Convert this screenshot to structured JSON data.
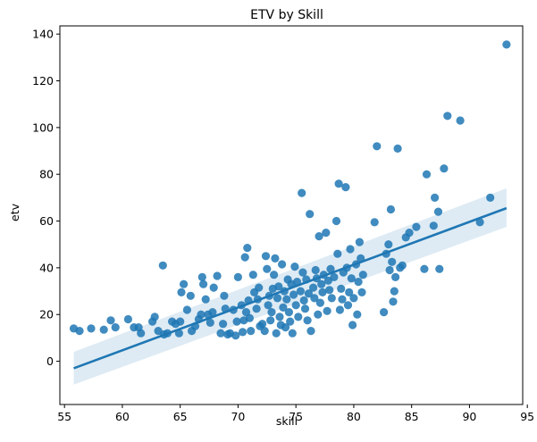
{
  "chart_data": {
    "type": "scatter",
    "title": "ETV by Skill",
    "xlabel": "skill",
    "ylabel": "etv",
    "xlim": [
      54.6,
      94.6
    ],
    "ylim": [
      -18.5,
      143.5
    ],
    "xticks": [
      55,
      60,
      65,
      70,
      75,
      80,
      85,
      90,
      95
    ],
    "yticks": [
      0,
      20,
      40,
      60,
      80,
      100,
      120,
      140
    ],
    "grid": false,
    "legend": "none",
    "colors": {
      "points": "#1f77b4",
      "line": "#1f77b4",
      "band": "#1f77b4"
    },
    "regression": {
      "x": [
        55.8,
        93.2
      ],
      "y": [
        -3.0,
        65.5
      ],
      "ci_lower": [
        -10.0,
        57.5
      ],
      "ci_upper": [
        4.0,
        74.0
      ]
    },
    "points": [
      [
        55.8,
        14
      ],
      [
        56.3,
        13
      ],
      [
        57.3,
        14
      ],
      [
        58.4,
        13.5
      ],
      [
        59.0,
        17.5
      ],
      [
        59.4,
        14.5
      ],
      [
        60.5,
        18
      ],
      [
        61.0,
        14.5
      ],
      [
        61.4,
        14.5
      ],
      [
        61.6,
        12
      ],
      [
        62.6,
        17
      ],
      [
        62.8,
        19
      ],
      [
        63.1,
        13
      ],
      [
        63.6,
        11.5
      ],
      [
        63.9,
        12
      ],
      [
        63.5,
        41
      ],
      [
        64.3,
        17
      ],
      [
        64.6,
        16
      ],
      [
        64.9,
        12
      ],
      [
        65.0,
        17
      ],
      [
        65.1,
        29.5
      ],
      [
        65.3,
        33
      ],
      [
        65.6,
        22
      ],
      [
        65.9,
        28
      ],
      [
        66.0,
        13
      ],
      [
        66.3,
        15
      ],
      [
        66.6,
        18
      ],
      [
        66.8,
        20
      ],
      [
        66.9,
        36
      ],
      [
        67.0,
        33
      ],
      [
        67.2,
        26.5
      ],
      [
        67.4,
        20
      ],
      [
        67.6,
        16.5
      ],
      [
        67.8,
        21
      ],
      [
        67.9,
        31.5
      ],
      [
        68.2,
        36.5
      ],
      [
        68.5,
        12
      ],
      [
        68.7,
        16
      ],
      [
        68.8,
        28
      ],
      [
        68.9,
        22.5
      ],
      [
        69.1,
        11.5
      ],
      [
        69.3,
        12
      ],
      [
        69.6,
        22
      ],
      [
        69.8,
        11
      ],
      [
        69.9,
        17
      ],
      [
        70.0,
        36
      ],
      [
        70.3,
        24
      ],
      [
        70.4,
        12.5
      ],
      [
        70.5,
        17.5
      ],
      [
        70.6,
        44.5
      ],
      [
        70.7,
        21
      ],
      [
        70.8,
        48.5
      ],
      [
        70.9,
        26
      ],
      [
        71.0,
        18.5
      ],
      [
        71.1,
        13
      ],
      [
        71.3,
        37
      ],
      [
        71.4,
        29.5
      ],
      [
        71.6,
        22.5
      ],
      [
        71.7,
        26.5
      ],
      [
        71.8,
        31.5
      ],
      [
        71.9,
        15
      ],
      [
        72.1,
        16
      ],
      [
        72.3,
        13
      ],
      [
        72.4,
        45
      ],
      [
        72.5,
        39.5
      ],
      [
        72.6,
        24
      ],
      [
        72.7,
        28
      ],
      [
        72.8,
        17.5
      ],
      [
        72.9,
        21
      ],
      [
        73.0,
        31
      ],
      [
        73.1,
        37
      ],
      [
        73.2,
        44
      ],
      [
        73.3,
        12
      ],
      [
        73.4,
        27
      ],
      [
        73.5,
        32
      ],
      [
        73.6,
        19
      ],
      [
        73.7,
        15.5
      ],
      [
        73.8,
        41.5
      ],
      [
        73.9,
        23
      ],
      [
        74.0,
        30
      ],
      [
        74.1,
        14.5
      ],
      [
        74.2,
        26.5
      ],
      [
        74.3,
        35
      ],
      [
        74.4,
        21
      ],
      [
        74.5,
        17
      ],
      [
        74.6,
        33
      ],
      [
        74.7,
        12
      ],
      [
        74.8,
        28.5
      ],
      [
        74.9,
        40.5
      ],
      [
        75.0,
        24
      ],
      [
        75.1,
        34
      ],
      [
        75.2,
        19
      ],
      [
        75.4,
        30
      ],
      [
        75.5,
        72
      ],
      [
        75.6,
        38
      ],
      [
        75.7,
        26
      ],
      [
        75.8,
        22.5
      ],
      [
        75.9,
        35
      ],
      [
        76.0,
        17.5
      ],
      [
        76.1,
        29
      ],
      [
        76.2,
        63
      ],
      [
        76.3,
        13
      ],
      [
        76.5,
        31.5
      ],
      [
        76.6,
        27
      ],
      [
        76.7,
        39
      ],
      [
        76.8,
        35.5
      ],
      [
        76.9,
        20
      ],
      [
        77.0,
        53.5
      ],
      [
        77.1,
        25
      ],
      [
        77.2,
        33
      ],
      [
        77.3,
        29.5
      ],
      [
        77.4,
        37
      ],
      [
        77.6,
        55
      ],
      [
        77.7,
        21.5
      ],
      [
        77.8,
        34.5
      ],
      [
        77.9,
        30.5
      ],
      [
        78.0,
        39.5
      ],
      [
        78.1,
        27
      ],
      [
        78.3,
        36
      ],
      [
        78.5,
        60
      ],
      [
        78.6,
        46
      ],
      [
        78.7,
        76
      ],
      [
        78.8,
        22
      ],
      [
        78.9,
        31
      ],
      [
        79.0,
        26.5
      ],
      [
        79.1,
        38
      ],
      [
        79.3,
        74.5
      ],
      [
        79.4,
        40
      ],
      [
        79.5,
        24
      ],
      [
        79.6,
        29.5
      ],
      [
        79.7,
        48
      ],
      [
        79.8,
        35.5
      ],
      [
        79.9,
        15.5
      ],
      [
        80.0,
        27
      ],
      [
        80.2,
        41.5
      ],
      [
        80.3,
        20
      ],
      [
        80.4,
        34
      ],
      [
        80.5,
        51
      ],
      [
        80.6,
        44
      ],
      [
        80.7,
        29.5
      ],
      [
        80.8,
        37
      ],
      [
        81.8,
        59.5
      ],
      [
        82.0,
        92
      ],
      [
        82.6,
        21
      ],
      [
        82.8,
        46
      ],
      [
        83.0,
        50
      ],
      [
        83.1,
        39
      ],
      [
        83.2,
        65
      ],
      [
        83.3,
        42.5
      ],
      [
        83.4,
        25.5
      ],
      [
        83.5,
        30
      ],
      [
        83.6,
        36
      ],
      [
        83.8,
        91
      ],
      [
        84.0,
        40
      ],
      [
        84.2,
        41
      ],
      [
        84.5,
        53
      ],
      [
        84.8,
        55
      ],
      [
        85.4,
        57.5
      ],
      [
        86.1,
        39.5
      ],
      [
        86.3,
        80
      ],
      [
        86.9,
        58
      ],
      [
        87.0,
        70
      ],
      [
        87.3,
        64
      ],
      [
        87.4,
        39.5
      ],
      [
        87.8,
        82.5
      ],
      [
        88.1,
        105
      ],
      [
        89.2,
        103
      ],
      [
        90.9,
        59.5
      ],
      [
        91.8,
        70
      ],
      [
        93.2,
        135.5
      ]
    ]
  }
}
